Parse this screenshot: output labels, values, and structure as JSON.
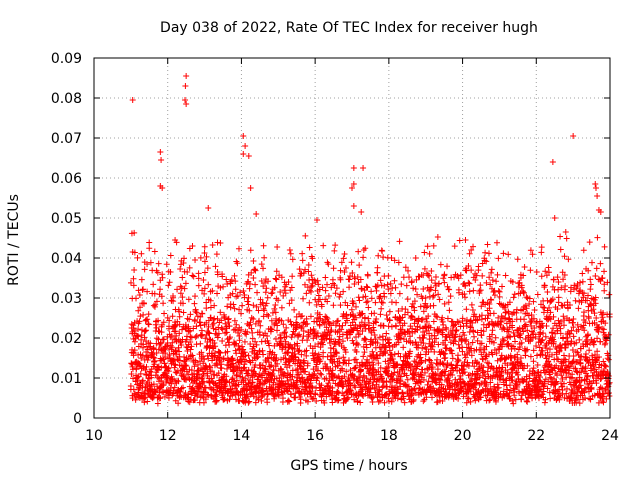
{
  "chart_data": {
    "type": "scatter",
    "title": "Day 038 of 2022, Rate Of TEC Index for receiver hugh",
    "xlabel": "GPS time / hours",
    "ylabel": "ROTI / TECUs",
    "xlim": [
      10,
      24
    ],
    "ylim": [
      0,
      0.09
    ],
    "x_ticks": [
      10,
      12,
      14,
      16,
      18,
      20,
      22,
      24
    ],
    "y_ticks": [
      0,
      0.01,
      0.02,
      0.03,
      0.04,
      0.05,
      0.06,
      0.07,
      0.08,
      0.09
    ],
    "x_tick_labels": [
      "10",
      "12",
      "14",
      "16",
      "18",
      "20",
      "22",
      "24"
    ],
    "y_tick_labels": [
      "0",
      "0.01",
      "0.02",
      "0.03",
      "0.04",
      "0.05",
      "0.06",
      "0.07",
      "0.08",
      "0.09"
    ],
    "grid": true,
    "marker": "+",
    "color": "#ff0000",
    "data_start_hour": 11.0,
    "data_end_hour": 24.0,
    "typical_range": [
      0.005,
      0.025
    ],
    "notable_points": [
      {
        "x": 11.05,
        "y": 0.0795
      },
      {
        "x": 11.05,
        "y": 0.0415
      },
      {
        "x": 11.8,
        "y": 0.0665
      },
      {
        "x": 11.82,
        "y": 0.0645
      },
      {
        "x": 11.8,
        "y": 0.058
      },
      {
        "x": 11.85,
        "y": 0.0575
      },
      {
        "x": 12.2,
        "y": 0.0445
      },
      {
        "x": 12.5,
        "y": 0.0855
      },
      {
        "x": 12.48,
        "y": 0.083
      },
      {
        "x": 12.47,
        "y": 0.0795
      },
      {
        "x": 12.5,
        "y": 0.0785
      },
      {
        "x": 13.1,
        "y": 0.0525
      },
      {
        "x": 14.05,
        "y": 0.0705
      },
      {
        "x": 14.1,
        "y": 0.068
      },
      {
        "x": 14.05,
        "y": 0.066
      },
      {
        "x": 14.2,
        "y": 0.0655
      },
      {
        "x": 14.25,
        "y": 0.0575
      },
      {
        "x": 14.4,
        "y": 0.051
      },
      {
        "x": 16.05,
        "y": 0.0495
      },
      {
        "x": 17.05,
        "y": 0.0625
      },
      {
        "x": 17.3,
        "y": 0.0625
      },
      {
        "x": 17.05,
        "y": 0.0585
      },
      {
        "x": 17.0,
        "y": 0.0575
      },
      {
        "x": 17.05,
        "y": 0.053
      },
      {
        "x": 17.25,
        "y": 0.0515
      },
      {
        "x": 22.45,
        "y": 0.064
      },
      {
        "x": 22.5,
        "y": 0.05
      },
      {
        "x": 22.8,
        "y": 0.0465
      },
      {
        "x": 23.0,
        "y": 0.0705
      },
      {
        "x": 23.6,
        "y": 0.0585
      },
      {
        "x": 23.62,
        "y": 0.0575
      },
      {
        "x": 23.65,
        "y": 0.0555
      },
      {
        "x": 23.7,
        "y": 0.052
      },
      {
        "x": 23.75,
        "y": 0.0515
      }
    ]
  }
}
